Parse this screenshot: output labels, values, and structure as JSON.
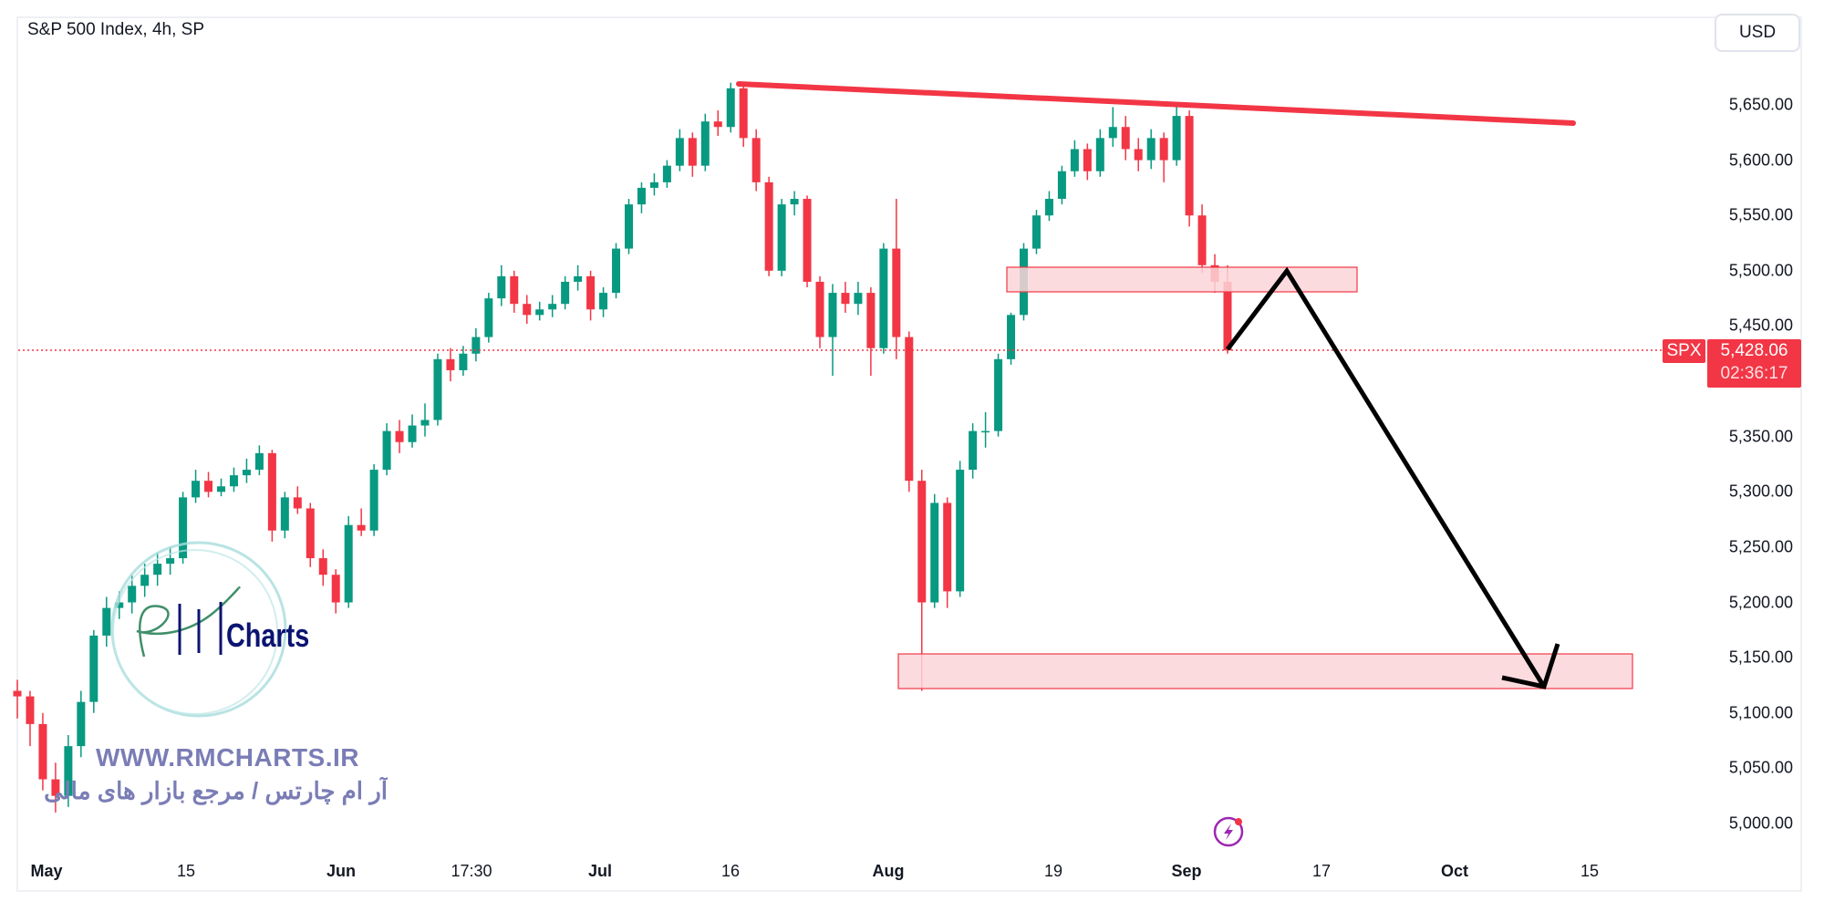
{
  "header": {
    "title": "S&P 500 Index, 4h, SP",
    "currency_button": "USD"
  },
  "colors": {
    "up": "#089981",
    "down": "#f23645",
    "trendline": "#f23645",
    "zone_fill": "#fbd5d8",
    "arrow": "#000000",
    "watermark": "#7a7db5"
  },
  "price_label": {
    "symbol": "SPX",
    "price": "5,428.06",
    "countdown": "02:36:17"
  },
  "watermark": {
    "logo_text": "Charts",
    "url": "WWW.RMCHARTS.IR",
    "tagline": "آر ام چارتس / مرجع بازار های مالی"
  },
  "icons": [
    "lightning-icon"
  ],
  "chart_data": {
    "type": "candlestick",
    "title": "S&P 500 Index, 4h, SP",
    "ylim": [
      4990,
      5700
    ],
    "y_ticks": [
      "5,650.00",
      "5,600.00",
      "5,550.00",
      "5,500.00",
      "5,450.00",
      "5,350.00",
      "5,300.00",
      "5,250.00",
      "5,200.00",
      "5,150.00",
      "5,100.00",
      "5,050.00",
      "5,000.00"
    ],
    "y_tick_values": [
      5650,
      5600,
      5550,
      5500,
      5450,
      5350,
      5300,
      5250,
      5200,
      5150,
      5100,
      5050,
      5000
    ],
    "x_ticks": [
      {
        "label": "May",
        "bold": true
      },
      {
        "label": "15"
      },
      {
        "label": "Jun",
        "bold": true
      },
      {
        "label": "17:30"
      },
      {
        "label": "Jul",
        "bold": true
      },
      {
        "label": "16"
      },
      {
        "label": "Aug",
        "bold": true
      },
      {
        "label": "19"
      },
      {
        "label": "Sep",
        "bold": true
      },
      {
        "label": "17"
      },
      {
        "label": "Oct",
        "bold": true
      },
      {
        "label": "15"
      }
    ],
    "last_price": 5428.06,
    "ohlc": [
      [
        5120,
        5130,
        5095,
        5115
      ],
      [
        5115,
        5120,
        5070,
        5090
      ],
      [
        5090,
        5100,
        5030,
        5040
      ],
      [
        5040,
        5055,
        5010,
        5025
      ],
      [
        5025,
        5080,
        5015,
        5070
      ],
      [
        5070,
        5120,
        5060,
        5110
      ],
      [
        5110,
        5175,
        5100,
        5170
      ],
      [
        5170,
        5205,
        5160,
        5195
      ],
      [
        5195,
        5210,
        5185,
        5200
      ],
      [
        5200,
        5225,
        5190,
        5215
      ],
      [
        5215,
        5235,
        5205,
        5225
      ],
      [
        5225,
        5245,
        5215,
        5235
      ],
      [
        5235,
        5250,
        5225,
        5240
      ],
      [
        5240,
        5300,
        5235,
        5295
      ],
      [
        5295,
        5320,
        5290,
        5310
      ],
      [
        5310,
        5318,
        5295,
        5300
      ],
      [
        5300,
        5312,
        5296,
        5305
      ],
      [
        5305,
        5322,
        5300,
        5315
      ],
      [
        5315,
        5330,
        5308,
        5320
      ],
      [
        5320,
        5342,
        5315,
        5335
      ],
      [
        5335,
        5338,
        5255,
        5265
      ],
      [
        5265,
        5300,
        5258,
        5295
      ],
      [
        5295,
        5305,
        5280,
        5285
      ],
      [
        5285,
        5290,
        5232,
        5240
      ],
      [
        5240,
        5248,
        5215,
        5225
      ],
      [
        5225,
        5230,
        5190,
        5200
      ],
      [
        5200,
        5278,
        5195,
        5270
      ],
      [
        5270,
        5285,
        5260,
        5265
      ],
      [
        5265,
        5325,
        5260,
        5320
      ],
      [
        5320,
        5362,
        5315,
        5355
      ],
      [
        5355,
        5365,
        5335,
        5345
      ],
      [
        5345,
        5370,
        5340,
        5360
      ],
      [
        5360,
        5380,
        5350,
        5365
      ],
      [
        5365,
        5425,
        5360,
        5420
      ],
      [
        5420,
        5430,
        5400,
        5410
      ],
      [
        5410,
        5432,
        5405,
        5425
      ],
      [
        5425,
        5448,
        5418,
        5440
      ],
      [
        5440,
        5480,
        5435,
        5475
      ],
      [
        5475,
        5505,
        5468,
        5495
      ],
      [
        5495,
        5500,
        5462,
        5470
      ],
      [
        5470,
        5478,
        5452,
        5460
      ],
      [
        5460,
        5472,
        5455,
        5465
      ],
      [
        5465,
        5478,
        5458,
        5470
      ],
      [
        5470,
        5495,
        5465,
        5490
      ],
      [
        5490,
        5505,
        5482,
        5495
      ],
      [
        5495,
        5500,
        5455,
        5465
      ],
      [
        5465,
        5485,
        5458,
        5480
      ],
      [
        5480,
        5525,
        5475,
        5520
      ],
      [
        5520,
        5565,
        5515,
        5560
      ],
      [
        5560,
        5580,
        5552,
        5575
      ],
      [
        5575,
        5588,
        5568,
        5580
      ],
      [
        5580,
        5600,
        5575,
        5595
      ],
      [
        5595,
        5628,
        5590,
        5620
      ],
      [
        5620,
        5625,
        5585,
        5595
      ],
      [
        5595,
        5642,
        5590,
        5635
      ],
      [
        5635,
        5645,
        5622,
        5630
      ],
      [
        5630,
        5670,
        5625,
        5665
      ],
      [
        5665,
        5668,
        5612,
        5620
      ],
      [
        5620,
        5628,
        5572,
        5580
      ],
      [
        5580,
        5585,
        5495,
        5500
      ],
      [
        5500,
        5565,
        5495,
        5560
      ],
      [
        5560,
        5572,
        5550,
        5565
      ],
      [
        5565,
        5568,
        5485,
        5490
      ],
      [
        5490,
        5495,
        5430,
        5440
      ],
      [
        5440,
        5488,
        5405,
        5480
      ],
      [
        5480,
        5490,
        5462,
        5470
      ],
      [
        5470,
        5490,
        5460,
        5480
      ],
      [
        5480,
        5485,
        5405,
        5430
      ],
      [
        5430,
        5525,
        5425,
        5520
      ],
      [
        5520,
        5565,
        5420,
        5440
      ],
      [
        5440,
        5445,
        5300,
        5310
      ],
      [
        5310,
        5320,
        5120,
        5200
      ],
      [
        5200,
        5298,
        5195,
        5290
      ],
      [
        5290,
        5295,
        5195,
        5210
      ],
      [
        5210,
        5328,
        5205,
        5320
      ],
      [
        5320,
        5362,
        5312,
        5355
      ],
      [
        5355,
        5372,
        5340,
        5355
      ],
      [
        5355,
        5425,
        5350,
        5420
      ],
      [
        5420,
        5462,
        5415,
        5460
      ],
      [
        5460,
        5525,
        5455,
        5520
      ],
      [
        5520,
        5555,
        5515,
        5550
      ],
      [
        5550,
        5572,
        5545,
        5565
      ],
      [
        5565,
        5595,
        5560,
        5590
      ],
      [
        5590,
        5618,
        5585,
        5610
      ],
      [
        5610,
        5615,
        5582,
        5590
      ],
      [
        5590,
        5628,
        5585,
        5620
      ],
      [
        5620,
        5648,
        5612,
        5630
      ],
      [
        5630,
        5640,
        5600,
        5610
      ],
      [
        5610,
        5620,
        5590,
        5600
      ],
      [
        5600,
        5628,
        5592,
        5620
      ],
      [
        5620,
        5625,
        5580,
        5600
      ],
      [
        5600,
        5650,
        5595,
        5640
      ],
      [
        5640,
        5645,
        5540,
        5550
      ],
      [
        5550,
        5560,
        5498,
        5505
      ],
      [
        5505,
        5515,
        5480,
        5490
      ],
      [
        5490,
        5505,
        5425,
        5428
      ]
    ],
    "drawings": {
      "resistance_trendline": {
        "from_price": 5670,
        "to_price": 5635
      },
      "zones": [
        {
          "low": 5480,
          "high": 5502
        },
        {
          "low": 5120,
          "high": 5155
        }
      ],
      "projection_path_prices": [
        5428,
        5500,
        5120
      ]
    }
  }
}
